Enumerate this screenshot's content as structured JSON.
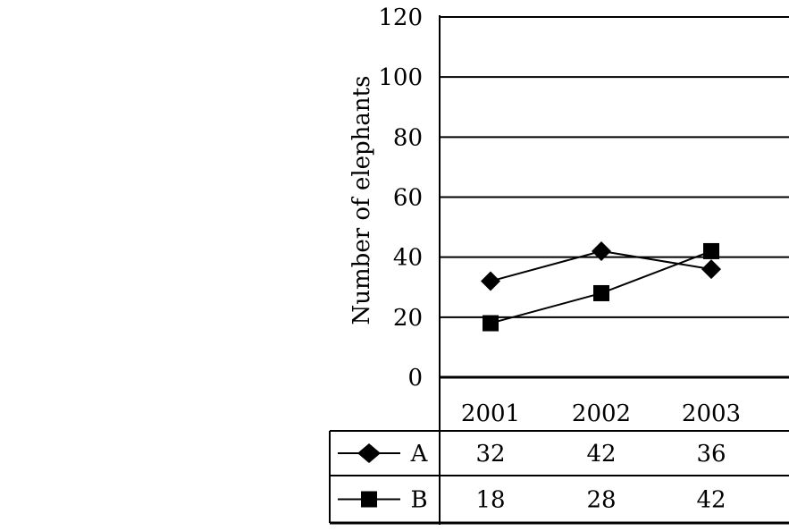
{
  "chart_data": {
    "type": "line",
    "ylabel": "Number of elephants",
    "ylim": [
      0,
      120
    ],
    "yticks": [
      "0",
      "20",
      "40",
      "60",
      "80",
      "100",
      "120"
    ],
    "grid": true,
    "categories": [
      "2001",
      "2002",
      "2003"
    ],
    "series": [
      {
        "name": "A",
        "marker": "diamond",
        "values": [
          32,
          42,
          36
        ],
        "labels": [
          "32",
          "42",
          "36"
        ]
      },
      {
        "name": "B",
        "marker": "square",
        "values": [
          18,
          28,
          42
        ],
        "labels": [
          "18",
          "28",
          "42"
        ]
      }
    ],
    "legend": "data table below plot"
  }
}
